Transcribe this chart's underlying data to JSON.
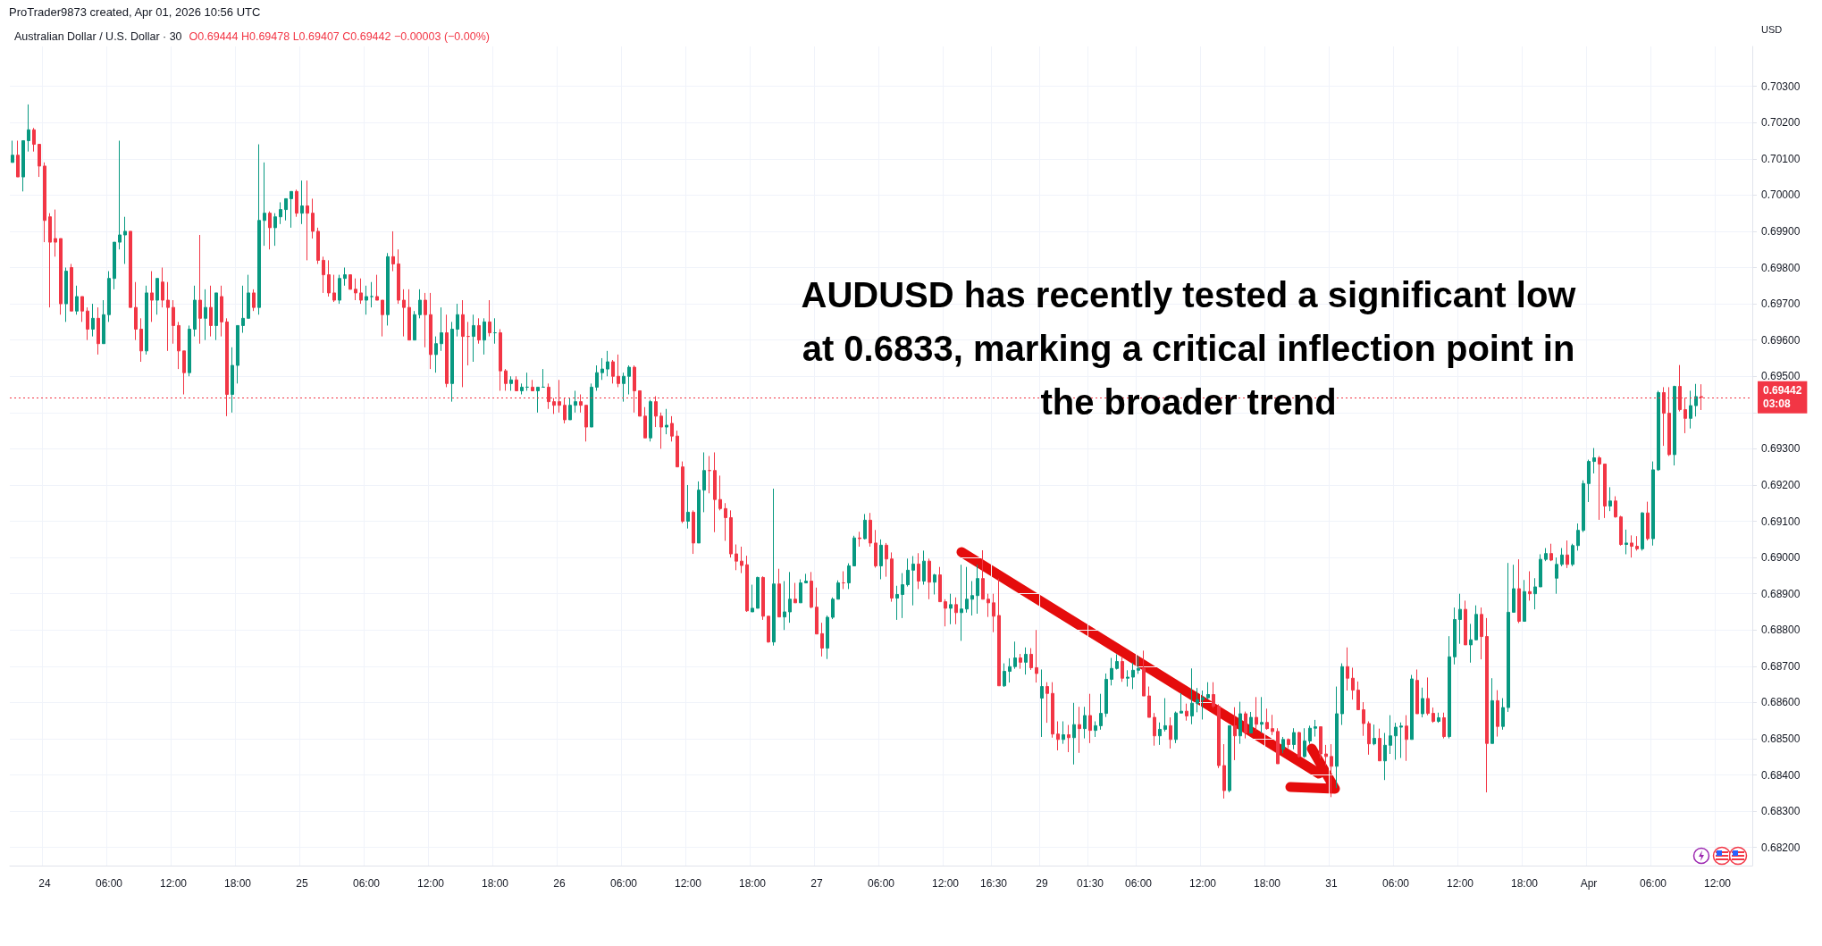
{
  "chart_data": {
    "type": "candlestick",
    "title": "Australian Dollar / U.S. Dollar · 30",
    "subtitle": "O0.69444 H0.69478 L0.69407 C0.69442 −0.00003 (−0.00%)",
    "ylabel": "USD",
    "annotations": [
      "ProTrader9873 created, Apr 01, 2026 10:56 UTC",
      "AUDUSD has recently tested a significant low at 0.6833, marking a critical inflection point in the broader trend",
      "03:08"
    ],
    "categories": [
      null,
      null,
      null,
      null,
      null,
      null,
      "24",
      null,
      null,
      null,
      null,
      null,
      null,
      null,
      null,
      null,
      null,
      null,
      "06:00",
      null,
      null,
      null,
      null,
      null,
      null,
      null,
      null,
      null,
      null,
      null,
      "12:00",
      null,
      null,
      null,
      null,
      null,
      null,
      null,
      null,
      null,
      null,
      null,
      "18:00",
      null,
      null,
      null,
      null,
      null,
      null,
      null,
      null,
      null,
      null,
      null,
      "25",
      null,
      null,
      null,
      null,
      null,
      null,
      null,
      null,
      null,
      null,
      null,
      "06:00",
      null,
      null,
      null,
      null,
      null,
      null,
      null,
      null,
      null,
      null,
      null,
      "12:00",
      null,
      null,
      null,
      null,
      null,
      null,
      null,
      null,
      null,
      null,
      null,
      "18:00",
      null,
      null,
      null,
      null,
      null,
      null,
      null,
      null,
      null,
      null,
      null,
      "26",
      null,
      null,
      null,
      null,
      null,
      null,
      null,
      null,
      null,
      null,
      null,
      "06:00",
      null,
      null,
      null,
      null,
      null,
      null,
      null,
      null,
      null,
      null,
      null,
      "12:00",
      null,
      null,
      null,
      null,
      null,
      null,
      null,
      null,
      null,
      null,
      null,
      "18:00",
      null,
      null,
      null,
      null,
      null,
      null,
      null,
      null,
      null,
      null,
      null,
      "27",
      null,
      null,
      null,
      null,
      null,
      null,
      null,
      null,
      null,
      null,
      null,
      "06:00",
      null,
      null,
      null,
      null,
      null,
      null,
      null,
      null,
      null,
      null,
      null,
      "12:00",
      null,
      null,
      null,
      null,
      null,
      null,
      null,
      null,
      "16:30",
      null,
      null,
      null,
      null,
      null,
      null,
      null,
      null,
      "29",
      null,
      null,
      null,
      null,
      null,
      null,
      null,
      null,
      "01:30",
      null,
      null,
      null,
      null,
      null,
      null,
      null,
      null,
      "06:00",
      null,
      null,
      null,
      null,
      null,
      null,
      null,
      null,
      null,
      null,
      null,
      "12:00",
      null,
      null,
      null,
      null,
      null,
      null,
      null,
      null,
      null,
      null,
      null,
      "18:00",
      null,
      null,
      null,
      null,
      null,
      null,
      null,
      null,
      null,
      null,
      null,
      "31",
      null,
      null,
      null,
      null,
      null,
      null,
      null,
      null,
      null,
      null,
      null,
      "06:00",
      null,
      null,
      null,
      null,
      null,
      null,
      null,
      null,
      null,
      null,
      null,
      "12:00",
      null,
      null,
      null,
      null,
      null,
      null,
      null,
      null,
      null,
      null,
      null,
      "18:00",
      null,
      null,
      null,
      null,
      null,
      null,
      null,
      null,
      null,
      null,
      null,
      "Apr",
      null,
      null,
      null,
      null,
      null,
      null,
      null,
      null,
      null,
      null,
      null,
      "06:00",
      null,
      null,
      null,
      null,
      null,
      null,
      null,
      null,
      null,
      null,
      null,
      "12:00",
      null,
      null,
      null,
      null,
      null,
      null
    ],
    "ohlc": [
      [
        0.7009,
        0.7015,
        0.7009,
        0.7011
      ],
      [
        0.7011,
        0.7015,
        0.7005,
        0.7005
      ],
      [
        0.7005,
        0.7015,
        0.7001,
        0.7015
      ],
      [
        0.7015,
        0.7025,
        0.7012,
        0.7018
      ],
      [
        0.7018,
        0.70185,
        0.7012,
        0.7014
      ],
      [
        0.7014,
        0.7014,
        0.7005,
        0.7008
      ],
      [
        0.7008,
        0.7009,
        0.6987,
        0.6993
      ],
      [
        0.6994,
        0.6995,
        0.6969,
        0.6987
      ],
      [
        0.6988,
        0.6996,
        0.6983,
        0.6987
      ],
      [
        0.6988,
        0.6988,
        0.6967,
        0.697
      ],
      [
        0.697,
        0.698,
        0.6965,
        0.6979
      ],
      [
        0.698,
        0.6981,
        0.6968,
        0.6968
      ],
      [
        0.6968,
        0.6975,
        0.6967,
        0.6972
      ],
      [
        0.6972,
        0.6972,
        0.6965,
        0.6968
      ],
      [
        0.6968,
        0.6969,
        0.696,
        0.6963
      ],
      [
        0.6963,
        0.697,
        0.6961,
        0.6966
      ],
      [
        0.6966,
        0.6969,
        0.6956,
        0.6959
      ],
      [
        0.6959,
        0.6971,
        0.6959,
        0.6967
      ],
      [
        0.6967,
        0.6979,
        0.6965,
        0.6977
      ],
      [
        0.6977,
        0.6987,
        0.6974,
        0.6987
      ],
      [
        0.6987,
        0.7015,
        0.6985,
        0.6989
      ],
      [
        0.6989,
        0.6994,
        0.6981,
        0.699
      ],
      [
        0.699,
        0.699,
        0.6969,
        0.6969
      ],
      [
        0.6969,
        0.6976,
        0.696,
        0.6963
      ],
      [
        0.6963,
        0.6966,
        0.6954,
        0.6957
      ],
      [
        0.6957,
        0.6975,
        0.6956,
        0.6973
      ],
      [
        0.6973,
        0.6979,
        0.6965,
        0.6971
      ],
      [
        0.6971,
        0.6977,
        0.6967,
        0.6977
      ],
      [
        0.6976,
        0.698,
        0.6969,
        0.6971
      ],
      [
        0.6971,
        0.6976,
        0.6957,
        0.6969
      ],
      [
        0.6969,
        0.6971,
        0.6959,
        0.6964
      ],
      [
        0.6964,
        0.6965,
        0.6952,
        0.6957
      ],
      [
        0.6957,
        0.6957,
        0.6945,
        0.6951
      ],
      [
        0.6951,
        0.6964,
        0.695,
        0.6963
      ],
      [
        0.6963,
        0.6975,
        0.6961,
        0.6971
      ],
      [
        0.6971,
        0.6989,
        0.6959,
        0.6966
      ],
      [
        0.6966,
        0.6974,
        0.696,
        0.6969
      ],
      [
        0.6969,
        0.6975,
        0.6961,
        0.6964
      ],
      [
        0.6964,
        0.6973,
        0.696,
        0.6973
      ],
      [
        0.6972,
        0.6975,
        0.6961,
        0.6965
      ],
      [
        0.6965,
        0.6966,
        0.6939,
        0.6945
      ],
      [
        0.6945,
        0.6958,
        0.694,
        0.6953
      ],
      [
        0.6953,
        0.6964,
        0.6948,
        0.6964
      ],
      [
        0.6964,
        0.6975,
        0.6962,
        0.6966
      ],
      [
        0.6966,
        0.6978,
        0.6966,
        0.6973
      ],
      [
        0.6973,
        0.6974,
        0.6968,
        0.6969
      ],
      [
        0.6969,
        0.7014,
        0.6967,
        0.6993
      ],
      [
        0.6993,
        0.7009,
        0.6986,
        0.6995
      ],
      [
        0.6995,
        0.69955,
        0.6985,
        0.6991
      ],
      [
        0.6991,
        0.6995,
        0.6986,
        0.6994
      ],
      [
        0.6994,
        0.6998,
        0.6992,
        0.6996
      ],
      [
        0.6996,
        0.6999,
        0.6993,
        0.6999
      ],
      [
        0.6999,
        0.7001,
        0.6991,
        0.7001
      ],
      [
        0.7001,
        0.70015,
        0.6994,
        0.6995
      ],
      [
        0.6995,
        0.7004,
        0.6992,
        0.6997
      ],
      [
        0.6997,
        0.7004,
        0.6982,
        0.6995
      ],
      [
        0.6995,
        0.6999,
        0.6988,
        0.699
      ],
      [
        0.699,
        0.6991,
        0.6981,
        0.6982
      ],
      [
        0.6982,
        0.6983,
        0.6973,
        0.6978
      ],
      [
        0.6978,
        0.6982,
        0.6972,
        0.6973
      ],
      [
        0.6973,
        0.6978,
        0.69705,
        0.6971
      ],
      [
        0.6971,
        0.6978,
        0.697,
        0.6977
      ],
      [
        0.6977,
        0.698,
        0.6975,
        0.6978
      ],
      [
        0.6978,
        0.6978,
        0.6974,
        0.6974
      ],
      [
        0.6974,
        0.6977,
        0.6971,
        0.6973
      ],
      [
        0.6973,
        0.6977,
        0.697,
        0.6971
      ],
      [
        0.6971,
        0.6975,
        0.6967,
        0.6972
      ],
      [
        0.6972,
        0.6976,
        0.6969,
        0.6972
      ],
      [
        0.6972,
        0.6978,
        0.6971,
        0.6971
      ],
      [
        0.6971,
        0.6971,
        0.6961,
        0.6967
      ],
      [
        0.6967,
        0.6984,
        0.6964,
        0.6983
      ],
      [
        0.6983,
        0.699,
        0.6979,
        0.6981
      ],
      [
        0.6981,
        0.6985,
        0.697,
        0.6971
      ],
      [
        0.6971,
        0.6974,
        0.6961,
        0.6969
      ],
      [
        0.6969,
        0.6974,
        0.696,
        0.696
      ],
      [
        0.696,
        0.6968,
        0.696,
        0.6967
      ],
      [
        0.6967,
        0.6974,
        0.6966,
        0.6971
      ],
      [
        0.6971,
        0.6973,
        0.6958,
        0.6967
      ],
      [
        0.6967,
        0.6973,
        0.6952,
        0.6956
      ],
      [
        0.6956,
        0.6961,
        0.6951,
        0.6959
      ],
      [
        0.6959,
        0.6969,
        0.6957,
        0.6962
      ],
      [
        0.6962,
        0.6967,
        0.6947,
        0.6948
      ],
      [
        0.6948,
        0.6965,
        0.6943,
        0.6963
      ],
      [
        0.6963,
        0.697,
        0.6961,
        0.6967
      ],
      [
        0.6967,
        0.6971,
        0.6947,
        0.6961
      ],
      [
        0.6961,
        0.6965,
        0.6953,
        0.6961
      ],
      [
        0.6961,
        0.6967,
        0.6954,
        0.6964
      ],
      [
        0.6964,
        0.6966,
        0.6959,
        0.696
      ],
      [
        0.696,
        0.6966,
        0.6956,
        0.6965
      ],
      [
        0.6965,
        0.6971,
        0.6961,
        0.6962
      ],
      [
        0.6962,
        0.6966,
        0.6959,
        0.6962
      ],
      [
        0.6962,
        0.6963,
        0.6946,
        0.69515
      ],
      [
        0.69515,
        0.6952,
        0.6946,
        0.6948
      ],
      [
        0.6948,
        0.695,
        0.6946,
        0.6949
      ],
      [
        0.6949,
        0.695,
        0.6946,
        0.6946
      ],
      [
        0.6946,
        0.6948,
        0.6945,
        0.6947
      ],
      [
        0.6947,
        0.6951,
        0.6946,
        0.6947
      ],
      [
        0.6947,
        0.6949,
        0.6946,
        0.6946
      ],
      [
        0.6946,
        0.6947,
        0.694,
        0.6947
      ],
      [
        0.6947,
        0.6952,
        0.6947,
        0.6947
      ],
      [
        0.6947,
        0.6948,
        0.6941,
        0.6943
      ],
      [
        0.6943,
        0.6944,
        0.69396,
        0.6942
      ],
      [
        0.6943,
        0.6949,
        0.694,
        0.6942
      ],
      [
        0.6942,
        0.6944,
        0.6937,
        0.6938
      ],
      [
        0.6938,
        0.6944,
        0.6938,
        0.6942
      ],
      [
        0.6942,
        0.6946,
        0.694,
        0.6943
      ],
      [
        0.6943,
        0.6945,
        0.694,
        0.6942
      ],
      [
        0.6942,
        0.6942,
        0.6932,
        0.6936
      ],
      [
        0.6936,
        0.6948,
        0.6936,
        0.6947
      ],
      [
        0.6947,
        0.6953,
        0.6946,
        0.6951
      ],
      [
        0.6951,
        0.6955,
        0.6949,
        0.6952
      ],
      [
        0.6952,
        0.6957,
        0.695,
        0.6954
      ],
      [
        0.6954,
        0.69545,
        0.6948,
        0.695
      ],
      [
        0.695,
        0.6956,
        0.6947,
        0.6948
      ],
      [
        0.6948,
        0.6951,
        0.6943,
        0.695
      ],
      [
        0.695,
        0.6953,
        0.6945,
        0.69525
      ],
      [
        0.69525,
        0.6953,
        0.694,
        0.6946
      ],
      [
        0.6946,
        0.6946,
        0.6939,
        0.6939
      ],
      [
        0.6939,
        0.69415,
        0.6933,
        0.6933
      ],
      [
        0.6933,
        0.69435,
        0.6932,
        0.6943
      ],
      [
        0.6943,
        0.69445,
        0.6936,
        0.6939
      ],
      [
        0.6939,
        0.694,
        0.693,
        0.6936
      ],
      [
        0.6936,
        0.6941,
        0.6934,
        0.69365
      ],
      [
        0.6937,
        0.6939,
        0.6932,
        0.69335
      ],
      [
        0.69335,
        0.6935,
        0.6925,
        0.6925
      ],
      [
        0.6925,
        0.69265,
        0.69095,
        0.691
      ],
      [
        0.691,
        0.692,
        0.6908,
        0.69125
      ],
      [
        0.69125,
        0.6913,
        0.6901,
        0.6904
      ],
      [
        0.6904,
        0.6921,
        0.6904,
        0.69186
      ],
      [
        0.69186,
        0.6929,
        0.69125,
        0.6924
      ],
      [
        0.6924,
        0.6928,
        0.69177,
        0.6924
      ],
      [
        0.6924,
        0.6929,
        0.6907,
        0.6916
      ],
      [
        0.6916,
        0.69226,
        0.6913,
        0.69135
      ],
      [
        0.69135,
        0.6915,
        0.69046,
        0.6911
      ],
      [
        0.6911,
        0.6913,
        0.69,
        0.6901
      ],
      [
        0.6901,
        0.69036,
        0.68965,
        0.6899
      ],
      [
        0.6899,
        0.6903,
        0.68957,
        0.68978
      ],
      [
        0.6898,
        0.69005,
        0.6885,
        0.68853
      ],
      [
        0.6885,
        0.68925,
        0.6885,
        0.6886
      ],
      [
        0.6886,
        0.68947,
        0.6886,
        0.68945
      ],
      [
        0.68945,
        0.68948,
        0.68828,
        0.68838
      ],
      [
        0.68838,
        0.68838,
        0.68765,
        0.68767
      ],
      [
        0.68767,
        0.6919,
        0.68757,
        0.68927
      ],
      [
        0.68927,
        0.68969,
        0.68836,
        0.68836
      ],
      [
        0.68836,
        0.68935,
        0.688,
        0.6885
      ],
      [
        0.6885,
        0.6896,
        0.6882,
        0.68885
      ],
      [
        0.68885,
        0.6893,
        0.68875,
        0.68875
      ],
      [
        0.68875,
        0.6894,
        0.68875,
        0.6893
      ],
      [
        0.6893,
        0.68955,
        0.6893,
        0.68935
      ],
      [
        0.68935,
        0.6896,
        0.6886,
        0.68863
      ],
      [
        0.68863,
        0.68917,
        0.68789,
        0.68789
      ],
      [
        0.6879,
        0.6882,
        0.68727,
        0.6875
      ],
      [
        0.6875,
        0.6884,
        0.6872,
        0.68835
      ],
      [
        0.68835,
        0.6889,
        0.6883,
        0.68885
      ],
      [
        0.68885,
        0.68937,
        0.68885,
        0.6893
      ],
      [
        0.6893,
        0.68962,
        0.68913,
        0.6893
      ],
      [
        0.6893,
        0.68984,
        0.68913,
        0.68977
      ],
      [
        0.68977,
        0.6906,
        0.68977,
        0.69054
      ],
      [
        0.69054,
        0.69071,
        0.6903,
        0.69052
      ],
      [
        0.69052,
        0.6912,
        0.6905,
        0.69103
      ],
      [
        0.69103,
        0.69123,
        0.6903,
        0.6904
      ],
      [
        0.6904,
        0.69076,
        0.68972,
        0.68977
      ],
      [
        0.68977,
        0.6905,
        0.6894,
        0.69034
      ],
      [
        0.69034,
        0.6904,
        0.68947,
        0.68996
      ],
      [
        0.68996,
        0.69014,
        0.68878,
        0.68888
      ],
      [
        0.68888,
        0.68922,
        0.68828,
        0.68898
      ],
      [
        0.68898,
        0.68957,
        0.68833,
        0.68925
      ],
      [
        0.68925,
        0.68997,
        0.6892,
        0.68965
      ],
      [
        0.68965,
        0.69004,
        0.68868,
        0.68982
      ],
      [
        0.68982,
        0.69012,
        0.68913,
        0.68935
      ],
      [
        0.68935,
        0.69019,
        0.68925,
        0.6899
      ],
      [
        0.6899,
        0.68997,
        0.68885,
        0.68932
      ],
      [
        0.68932,
        0.68955,
        0.68898,
        0.68952
      ],
      [
        0.68952,
        0.68974,
        0.68878,
        0.68878
      ],
      [
        0.68878,
        0.68885,
        0.6881,
        0.6886
      ],
      [
        0.6886,
        0.689,
        0.68816,
        0.6887
      ],
      [
        0.6887,
        0.6889,
        0.68816,
        0.68848
      ],
      [
        0.68848,
        0.6898,
        0.6877,
        0.68858
      ],
      [
        0.68858,
        0.68974,
        0.68848,
        0.68885
      ],
      [
        0.68885,
        0.68935,
        0.6884,
        0.68895
      ],
      [
        0.68895,
        0.6898,
        0.68845,
        0.68942
      ],
      [
        0.68942,
        0.6902,
        0.68885,
        0.68885
      ],
      [
        0.68885,
        0.689,
        0.68836,
        0.68875
      ],
      [
        0.68875,
        0.689,
        0.68794,
        0.68838
      ],
      [
        0.6884,
        0.68942,
        0.68646,
        0.68646
      ],
      [
        0.68646,
        0.68708,
        0.68643,
        0.68686
      ],
      [
        0.68686,
        0.68722,
        0.68655,
        0.68699
      ],
      [
        0.68699,
        0.68768,
        0.68693,
        0.68723
      ],
      [
        0.68723,
        0.68734,
        0.68693,
        0.68711
      ],
      [
        0.68711,
        0.68752,
        0.68677,
        0.68733
      ],
      [
        0.68733,
        0.6875,
        0.6869,
        0.68696
      ],
      [
        0.68696,
        0.688,
        0.68655,
        0.6868
      ],
      [
        0.68612,
        0.68691,
        0.68505,
        0.68644
      ],
      [
        0.68644,
        0.68656,
        0.68544,
        0.68625
      ],
      [
        0.68625,
        0.68656,
        0.68503,
        0.68513
      ],
      [
        0.68513,
        0.68548,
        0.68468,
        0.68498
      ],
      [
        0.68498,
        0.68548,
        0.68486,
        0.68511
      ],
      [
        0.68511,
        0.68538,
        0.68463,
        0.68503
      ],
      [
        0.68503,
        0.68599,
        0.68429,
        0.68539
      ],
      [
        0.68539,
        0.68588,
        0.68461,
        0.68528
      ],
      [
        0.68528,
        0.68588,
        0.68501,
        0.68564
      ],
      [
        0.68564,
        0.68624,
        0.68488,
        0.68523
      ],
      [
        0.68523,
        0.68548,
        0.68505,
        0.68536
      ],
      [
        0.68536,
        0.68624,
        0.68525,
        0.6857
      ],
      [
        0.6857,
        0.6868,
        0.6856,
        0.68664
      ],
      [
        0.68664,
        0.68723,
        0.68647,
        0.68694
      ],
      [
        0.68694,
        0.68733,
        0.68691,
        0.68713
      ],
      [
        0.68713,
        0.68724,
        0.68657,
        0.68667
      ],
      [
        0.68667,
        0.68689,
        0.68644,
        0.6867
      ],
      [
        0.6867,
        0.6871,
        0.68637,
        0.68689
      ],
      [
        0.68689,
        0.68728,
        0.68679,
        0.68694
      ],
      [
        0.68694,
        0.68743,
        0.68618,
        0.68618
      ],
      [
        0.68618,
        0.68644,
        0.68559,
        0.68559
      ],
      [
        0.68559,
        0.68571,
        0.68481,
        0.68508
      ],
      [
        0.68508,
        0.68545,
        0.68483,
        0.68526
      ],
      [
        0.68526,
        0.68612,
        0.6852,
        0.68536
      ],
      [
        0.68536,
        0.68559,
        0.68473,
        0.68498
      ],
      [
        0.68498,
        0.68575,
        0.68488,
        0.68571
      ],
      [
        0.68571,
        0.68626,
        0.6857,
        0.68576
      ],
      [
        0.68576,
        0.68597,
        0.6855,
        0.68563
      ],
      [
        0.68563,
        0.68694,
        0.6854,
        0.68598
      ],
      [
        0.68598,
        0.6864,
        0.68573,
        0.68608
      ],
      [
        0.68608,
        0.68633,
        0.68553,
        0.68613
      ],
      [
        0.68613,
        0.68656,
        0.68608,
        0.68622
      ],
      [
        0.68622,
        0.68656,
        0.68585,
        0.6859
      ],
      [
        0.68589,
        0.68595,
        0.68419,
        0.68426
      ],
      [
        0.68426,
        0.68485,
        0.68335,
        0.68357
      ],
      [
        0.68357,
        0.68536,
        0.68352,
        0.68536
      ],
      [
        0.68536,
        0.68587,
        0.68441,
        0.68508
      ],
      [
        0.68508,
        0.68602,
        0.68486,
        0.68569
      ],
      [
        0.68569,
        0.68575,
        0.68501,
        0.68516
      ],
      [
        0.68516,
        0.68574,
        0.68516,
        0.68559
      ],
      [
        0.68559,
        0.68615,
        0.68523,
        0.6854
      ],
      [
        0.6854,
        0.68615,
        0.68516,
        0.68545
      ],
      [
        0.68545,
        0.68583,
        0.68525,
        0.68528
      ],
      [
        0.68528,
        0.68566,
        0.6851,
        0.6852
      ],
      [
        0.6852,
        0.68529,
        0.68431,
        0.68431
      ],
      [
        0.68471,
        0.68505,
        0.6846,
        0.68498
      ],
      [
        0.68498,
        0.68501,
        0.68474,
        0.68484
      ],
      [
        0.68484,
        0.68529,
        0.68471,
        0.68517
      ],
      [
        0.68517,
        0.68519,
        0.68448,
        0.68451
      ],
      [
        0.68451,
        0.68529,
        0.68448,
        0.68494
      ],
      [
        0.68494,
        0.68536,
        0.68486,
        0.68529
      ],
      [
        0.68529,
        0.68552,
        0.68506,
        0.68533
      ],
      [
        0.68533,
        0.68533,
        0.68446,
        0.68458
      ],
      [
        0.68458,
        0.68483,
        0.68426,
        0.68451
      ],
      [
        0.68451,
        0.68485,
        0.68339,
        0.68424
      ],
      [
        0.68424,
        0.68644,
        0.68364,
        0.68569
      ],
      [
        0.68569,
        0.68708,
        0.68538,
        0.68699
      ],
      [
        0.68699,
        0.68752,
        0.68633,
        0.68667
      ],
      [
        0.68667,
        0.68696,
        0.68608,
        0.68634
      ],
      [
        0.68634,
        0.68658,
        0.6858,
        0.6858
      ],
      [
        0.6858,
        0.68601,
        0.68508,
        0.68542
      ],
      [
        0.68542,
        0.68548,
        0.68456,
        0.68486
      ],
      [
        0.68486,
        0.68539,
        0.68482,
        0.68501
      ],
      [
        0.68501,
        0.68528,
        0.68439,
        0.68439
      ],
      [
        0.68439,
        0.68516,
        0.68386,
        0.68482
      ],
      [
        0.68482,
        0.68565,
        0.68458,
        0.68508
      ],
      [
        0.68508,
        0.68544,
        0.68442,
        0.68532
      ],
      [
        0.68532,
        0.68545,
        0.68447,
        0.68535
      ],
      [
        0.68535,
        0.68565,
        0.68439,
        0.68498
      ],
      [
        0.68498,
        0.68676,
        0.68498,
        0.68665
      ],
      [
        0.68661,
        0.68691,
        0.68569,
        0.68569
      ],
      [
        0.68569,
        0.68641,
        0.68559,
        0.68611
      ],
      [
        0.68611,
        0.68669,
        0.68565,
        0.6857
      ],
      [
        0.6857,
        0.68586,
        0.68544,
        0.68548
      ],
      [
        0.68548,
        0.68572,
        0.68544,
        0.68558
      ],
      [
        0.68558,
        0.68572,
        0.68501,
        0.68506
      ],
      [
        0.68506,
        0.68783,
        0.68501,
        0.68726
      ],
      [
        0.68726,
        0.68862,
        0.68705,
        0.68829
      ],
      [
        0.68829,
        0.689,
        0.68762,
        0.68857
      ],
      [
        0.68857,
        0.68881,
        0.68759,
        0.68759
      ],
      [
        0.68759,
        0.68817,
        0.6871,
        0.68773
      ],
      [
        0.68773,
        0.68868,
        0.68772,
        0.68843
      ],
      [
        0.68843,
        0.68862,
        0.68719,
        0.68782
      ],
      [
        0.68782,
        0.68833,
        0.68352,
        0.68487
      ],
      [
        0.68487,
        0.68667,
        0.68487,
        0.68605
      ],
      [
        0.68605,
        0.68634,
        0.68506,
        0.68534
      ],
      [
        0.68534,
        0.68612,
        0.68525,
        0.68586
      ],
      [
        0.68586,
        0.68985,
        0.68574,
        0.68849
      ],
      [
        0.68849,
        0.6898,
        0.68849,
        0.68914
      ],
      [
        0.68914,
        0.68995,
        0.68819,
        0.68824
      ],
      [
        0.68824,
        0.68938,
        0.68824,
        0.68906
      ],
      [
        0.68906,
        0.68962,
        0.68881,
        0.689
      ],
      [
        0.689,
        0.68943,
        0.68857,
        0.68919
      ],
      [
        0.68919,
        0.69009,
        0.68919,
        0.68995
      ],
      [
        0.68995,
        0.69026,
        0.6899,
        0.69011
      ],
      [
        0.69011,
        0.69038,
        0.6899,
        0.68993
      ],
      [
        0.68943,
        0.69,
        0.689,
        0.68981
      ],
      [
        0.68981,
        0.69026,
        0.68976,
        0.69007
      ],
      [
        0.69007,
        0.69047,
        0.68971,
        0.68981
      ],
      [
        0.68981,
        0.69038,
        0.68976,
        0.69033
      ],
      [
        0.69033,
        0.69094,
        0.69019,
        0.69075
      ],
      [
        0.69075,
        0.69213,
        0.6907,
        0.69204
      ],
      [
        0.69204,
        0.6927,
        0.69153,
        0.69265
      ],
      [
        0.69265,
        0.69302,
        0.69232,
        0.69275
      ],
      [
        0.69275,
        0.6928,
        0.69104,
        0.69258
      ],
      [
        0.69258,
        0.69258,
        0.69109,
        0.69142
      ],
      [
        0.69142,
        0.69194,
        0.69128,
        0.69156
      ],
      [
        0.69156,
        0.69169,
        0.6911,
        0.69112
      ],
      [
        0.69112,
        0.69115,
        0.69033,
        0.69036
      ],
      [
        0.69036,
        0.69077,
        0.69009,
        0.6904
      ],
      [
        0.6904,
        0.69061,
        0.69,
        0.69031
      ],
      [
        0.69031,
        0.69059,
        0.69019,
        0.69024
      ],
      [
        0.69024,
        0.69125,
        0.69019,
        0.69123
      ],
      [
        0.69123,
        0.69154,
        0.69047,
        0.69052
      ],
      [
        0.69052,
        0.69265,
        0.69033,
        0.69242
      ],
      [
        0.69242,
        0.6946,
        0.69239,
        0.69455
      ],
      [
        0.69455,
        0.6947,
        0.69308,
        0.69398
      ],
      [
        0.69398,
        0.6947,
        0.6928,
        0.69284
      ],
      [
        0.69284,
        0.69474,
        0.69254,
        0.69472
      ],
      [
        0.69472,
        0.69531,
        0.69403,
        0.69408
      ],
      [
        0.69408,
        0.69441,
        0.69343,
        0.69384
      ],
      [
        0.69384,
        0.6946,
        0.69356,
        0.69419
      ],
      [
        0.69419,
        0.69479,
        0.69389,
        0.69444
      ],
      [
        0.69444,
        0.69478,
        0.69407,
        0.69442
      ],
      null,
      null,
      null,
      null,
      null,
      null,
      null,
      null,
      null
    ],
    "colors": [
      "#089981",
      "#f23645",
      "#089981",
      "#089981",
      "#f23645",
      "#f23645",
      "#f23645",
      "#f23645",
      "#f23645",
      "#f23645",
      "#089981",
      "#f23645",
      "#089981",
      "#f23645",
      "#f23645",
      "#089981",
      "#f23645",
      "#089981",
      "#089981",
      "#089981",
      "#089981",
      "#089981",
      "#f23645",
      "#f23645",
      "#f23645",
      "#089981",
      "#f23645",
      "#089981",
      "#f23645",
      "#f23645",
      "#f23645",
      "#f23645",
      "#f23645",
      "#089981",
      "#089981",
      "#f23645",
      "#089981",
      "#f23645",
      "#089981",
      "#f23645",
      "#f23645",
      "#089981",
      "#089981",
      "#089981",
      "#089981",
      "#f23645",
      "#089981",
      "#089981",
      "#f23645",
      "#089981",
      "#089981",
      "#089981",
      "#089981",
      "#f23645",
      "#089981",
      "#f23645",
      "#f23645",
      "#f23645",
      "#f23645",
      "#f23645",
      "#f23645",
      "#089981",
      "#089981",
      "#f23645",
      "#f23645",
      "#f23645",
      "#089981",
      "#089981",
      "#f23645",
      "#f23645",
      "#089981",
      "#f23645",
      "#f23645",
      "#f23645",
      "#f23645",
      "#089981",
      "#089981",
      "#f23645",
      "#f23645",
      "#089981",
      "#089981",
      "#f23645",
      "#089981",
      "#089981",
      "#f23645",
      "#f23645",
      "#089981",
      "#f23645",
      "#089981",
      "#f23645",
      "#089981",
      "#f23645",
      "#f23645",
      "#089981",
      "#f23645",
      "#089981",
      "#089981",
      "#f23645",
      "#089981",
      "#089981",
      "#f23645",
      "#f23645",
      "#f23645",
      "#f23645",
      "#089981",
      "#089981",
      "#f23645",
      "#f23645",
      "#089981",
      "#089981",
      "#089981",
      "#089981",
      "#f23645",
      "#f23645",
      "#089981",
      "#089981",
      "#f23645",
      "#f23645",
      "#f23645",
      "#089981",
      "#f23645",
      "#f23645",
      "#089981",
      "#f23645",
      "#f23645",
      "#f23645",
      "#089981",
      "#f23645",
      "#089981",
      "#089981",
      "#f23645",
      "#f23645",
      "#f23645",
      "#f23645",
      "#f23645",
      "#f23645",
      "#f23645",
      "#f23645",
      "#089981",
      "#089981",
      "#f23645",
      "#f23645",
      "#089981",
      "#f23645",
      "#089981",
      "#089981",
      "#f23645",
      "#089981",
      "#089981",
      "#f23645",
      "#f23645",
      "#f23645",
      "#089981",
      "#089981",
      "#089981",
      "#f23645",
      "#089981",
      "#089981",
      "#f23645",
      "#089981",
      "#f23645",
      "#f23645",
      "#089981",
      "#f23645",
      "#f23645",
      "#089981",
      "#089981",
      "#089981",
      "#089981",
      "#f23645",
      "#089981",
      "#f23645",
      "#089981",
      "#f23645",
      "#f23645",
      "#089981",
      "#f23645",
      "#089981",
      "#089981",
      "#089981",
      "#089981",
      "#f23645",
      "#f23645",
      "#f23645",
      "#f23645",
      "#089981",
      "#089981",
      "#089981",
      "#f23645",
      "#089981",
      "#f23645",
      "#f23645",
      "#089981",
      "#f23645",
      "#f23645",
      "#f23645",
      "#089981",
      "#f23645",
      "#089981",
      "#f23645",
      "#089981",
      "#f23645",
      "#089981",
      "#089981",
      "#089981",
      "#089981",
      "#089981",
      "#f23645",
      "#089981",
      "#089981",
      "#089981",
      "#f23645",
      "#f23645",
      "#f23645",
      "#089981",
      "#089981",
      "#f23645",
      "#089981",
      "#089981",
      "#f23645",
      "#089981",
      "#089981",
      "#089981",
      "#089981",
      "#f23645",
      "#f23645",
      "#f23645",
      "#089981",
      "#f23645",
      "#089981",
      "#f23645",
      "#089981",
      "#f23645",
      "#089981",
      "#f23645",
      "#f23645",
      "#f23645",
      "#089981",
      "#f23645",
      "#089981",
      "#f23645",
      "#089981",
      "#089981",
      "#089981",
      "#f23645",
      "#f23645",
      "#f23645",
      "#089981",
      "#089981",
      "#f23645",
      "#f23645",
      "#f23645",
      "#f23645",
      "#f23645",
      "#089981",
      "#f23645",
      "#089981",
      "#089981",
      "#089981",
      "#089981",
      "#f23645",
      "#089981",
      "#f23645",
      "#089981",
      "#f23645",
      "#f23645",
      "#089981",
      "#f23645",
      "#089981",
      "#089981",
      "#089981",
      "#f23645",
      "#089981",
      "#089981",
      "#f23645",
      "#f23645",
      "#089981",
      "#f23645",
      "#089981",
      "#089981",
      "#089981",
      "#f23645",
      "#089981",
      "#f23645",
      "#089981",
      "#089981",
      "#089981",
      "#f23645",
      "#089981",
      "#089981",
      "#f23645",
      "#089981",
      "#089981",
      "#089981",
      "#089981",
      "#089981",
      "#f23645",
      "#f23645",
      "#089981",
      "#f23645",
      "#f23645",
      "#089981",
      "#f23645",
      "#f23645",
      "#089981",
      "#f23645",
      "#089981",
      "#089981",
      "#f23645",
      "#f23645",
      "#089981",
      "#f23645",
      "#f23645",
      "#089981",
      "#089981",
      "#f23645",
      null,
      null,
      null,
      null,
      null,
      null,
      null,
      null,
      null
    ],
    "ylim": [
      0.6815,
      0.7041
    ],
    "yticks": [
      {
        "value": 0.682,
        "label": "0.68200"
      },
      {
        "value": 0.683,
        "label": "0.68300"
      },
      {
        "value": 0.684,
        "label": "0.68400"
      },
      {
        "value": 0.685,
        "label": "0.68500"
      },
      {
        "value": 0.686,
        "label": "0.68600"
      },
      {
        "value": 0.687,
        "label": "0.68700"
      },
      {
        "value": 0.688,
        "label": "0.68800"
      },
      {
        "value": 0.689,
        "label": "0.68900"
      },
      {
        "value": 0.69,
        "label": "0.69000"
      },
      {
        "value": 0.691,
        "label": "0.69100"
      },
      {
        "value": 0.692,
        "label": "0.69200"
      },
      {
        "value": 0.693,
        "label": "0.69300"
      },
      {
        "value": 0.694,
        "label": null
      },
      {
        "value": 0.695,
        "label": "0.69500"
      },
      {
        "value": 0.696,
        "label": "0.69600"
      },
      {
        "value": 0.697,
        "label": "0.69700"
      },
      {
        "value": 0.698,
        "label": "0.69800"
      },
      {
        "value": 0.699,
        "label": "0.69900"
      },
      {
        "value": 0.7,
        "label": "0.70000"
      },
      {
        "value": 0.701,
        "label": "0.70100"
      },
      {
        "value": 0.702,
        "label": "0.70200"
      },
      {
        "value": 0.703,
        "label": "0.70300"
      }
    ],
    "grid": true,
    "ref_lines": [
      {
        "axis": "y",
        "value": 0.69442,
        "label": "0.69442",
        "color": "#f23645",
        "line_style": "dotted"
      }
    ]
  }
}
